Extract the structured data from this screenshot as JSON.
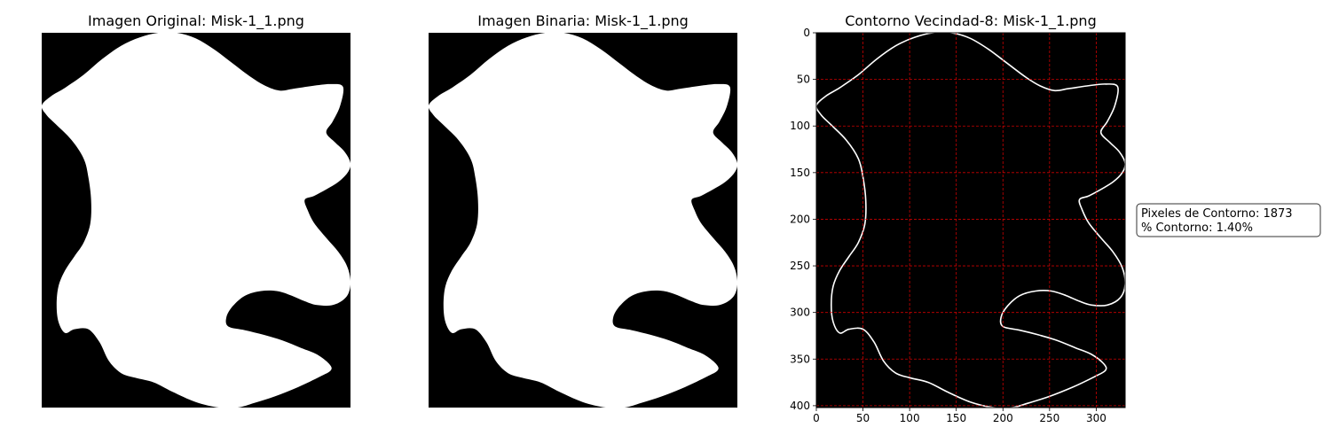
{
  "panels": [
    {
      "title": "Imagen Original: Misk-1_1.png"
    },
    {
      "title": "Imagen Binaria: Misk-1_1.png"
    },
    {
      "title": "Contorno Vecindad-8: Misk-1_1.png"
    }
  ],
  "chart_data": {
    "type": "image",
    "x_ticks": [
      "0",
      "50",
      "100",
      "150",
      "200",
      "250",
      "300"
    ],
    "y_ticks": [
      "0",
      "50",
      "100",
      "150",
      "200",
      "250",
      "300",
      "350",
      "400"
    ],
    "xlim": [
      0,
      331
    ],
    "ylim": [
      402,
      0
    ],
    "grid": true,
    "grid_color": "#ff0000",
    "background_color": "#000000",
    "shape_color": "#ffffff",
    "contour_outline": [
      [
        0,
        78
      ],
      [
        10,
        68
      ],
      [
        25,
        59
      ],
      [
        45,
        45
      ],
      [
        65,
        28
      ],
      [
        85,
        14
      ],
      [
        105,
        5
      ],
      [
        125,
        0
      ],
      [
        145,
        0
      ],
      [
        165,
        6
      ],
      [
        185,
        18
      ],
      [
        205,
        33
      ],
      [
        225,
        48
      ],
      [
        240,
        57
      ],
      [
        255,
        62
      ],
      [
        270,
        60
      ],
      [
        290,
        57
      ],
      [
        310,
        55
      ],
      [
        323,
        58
      ],
      [
        320,
        78
      ],
      [
        312,
        95
      ],
      [
        305,
        107
      ],
      [
        315,
        118
      ],
      [
        325,
        128
      ],
      [
        331,
        140
      ],
      [
        328,
        150
      ],
      [
        318,
        160
      ],
      [
        305,
        168
      ],
      [
        292,
        175
      ],
      [
        282,
        179
      ],
      [
        285,
        190
      ],
      [
        292,
        204
      ],
      [
        305,
        220
      ],
      [
        318,
        235
      ],
      [
        328,
        252
      ],
      [
        331,
        270
      ],
      [
        326,
        284
      ],
      [
        312,
        292
      ],
      [
        295,
        292
      ],
      [
        282,
        288
      ],
      [
        268,
        282
      ],
      [
        252,
        277
      ],
      [
        235,
        277
      ],
      [
        218,
        282
      ],
      [
        205,
        293
      ],
      [
        198,
        305
      ],
      [
        200,
        315
      ],
      [
        218,
        319
      ],
      [
        238,
        324
      ],
      [
        258,
        330
      ],
      [
        278,
        338
      ],
      [
        295,
        345
      ],
      [
        308,
        355
      ],
      [
        310,
        362
      ],
      [
        298,
        369
      ],
      [
        275,
        380
      ],
      [
        250,
        390
      ],
      [
        228,
        397
      ],
      [
        210,
        402
      ],
      [
        190,
        402
      ],
      [
        165,
        396
      ],
      [
        140,
        385
      ],
      [
        120,
        375
      ],
      [
        100,
        370
      ],
      [
        85,
        365
      ],
      [
        72,
        352
      ],
      [
        62,
        332
      ],
      [
        50,
        318
      ],
      [
        35,
        318
      ],
      [
        25,
        322
      ],
      [
        18,
        310
      ],
      [
        16,
        292
      ],
      [
        18,
        272
      ],
      [
        25,
        255
      ],
      [
        35,
        240
      ],
      [
        45,
        225
      ],
      [
        52,
        205
      ],
      [
        53,
        180
      ],
      [
        50,
        155
      ],
      [
        45,
        135
      ],
      [
        32,
        115
      ],
      [
        15,
        98
      ],
      [
        5,
        88
      ]
    ]
  },
  "info_box": {
    "line1": "Pixeles de Contorno: 1873",
    "line2": "% Contorno: 1.40%"
  }
}
